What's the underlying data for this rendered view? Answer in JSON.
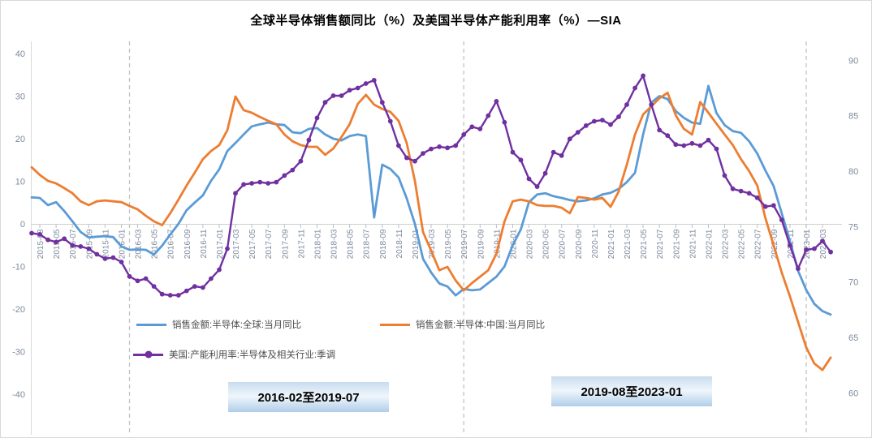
{
  "title": "全球半导体销售额同比（%）及美国半导体产能利用率（%）—SIA",
  "annotations": [
    {
      "label": "2016-02至2019-07"
    },
    {
      "label": "2019-08至2023-01"
    }
  ],
  "chart_data": {
    "type": "line",
    "title": "全球半导体销售额同比（%）及美国半导体产能利用率（%）—SIA",
    "grid": false,
    "legend_position": "below-plot",
    "left_axis": {
      "min": -40,
      "max": 40,
      "step": 10
    },
    "right_axis": {
      "min": 60,
      "max": 90,
      "step": 5
    },
    "tick_label_color": "#7e8a9e",
    "dashed_vlines": [
      "2016-02",
      "2019-07",
      "2023-01"
    ],
    "x": [
      "2015-02",
      "2015-03",
      "2015-04",
      "2015-05",
      "2015-06",
      "2015-07",
      "2015-08",
      "2015-09",
      "2015-10",
      "2015-11",
      "2015-12",
      "2016-01",
      "2016-02",
      "2016-03",
      "2016-04",
      "2016-05",
      "2016-06",
      "2016-07",
      "2016-08",
      "2016-09",
      "2016-10",
      "2016-11",
      "2016-12",
      "2017-01",
      "2017-02",
      "2017-03",
      "2017-04",
      "2017-05",
      "2017-06",
      "2017-07",
      "2017-08",
      "2017-09",
      "2017-10",
      "2017-11",
      "2017-12",
      "2018-01",
      "2018-02",
      "2018-03",
      "2018-04",
      "2018-05",
      "2018-06",
      "2018-07",
      "2018-08",
      "2018-09",
      "2018-10",
      "2018-11",
      "2018-12",
      "2019-01",
      "2019-02",
      "2019-03",
      "2019-04",
      "2019-05",
      "2019-06",
      "2019-07",
      "2019-08",
      "2019-09",
      "2019-10",
      "2019-11",
      "2019-12",
      "2020-01",
      "2020-02",
      "2020-03",
      "2020-04",
      "2020-05",
      "2020-06",
      "2020-07",
      "2020-08",
      "2020-09",
      "2020-10",
      "2020-11",
      "2020-12",
      "2021-01",
      "2021-02",
      "2021-03",
      "2021-04",
      "2021-05",
      "2021-06",
      "2021-07",
      "2021-08",
      "2021-09",
      "2021-10",
      "2021-11",
      "2021-12",
      "2022-01",
      "2022-02",
      "2022-03",
      "2022-04",
      "2022-05",
      "2022-06",
      "2022-07",
      "2022-08",
      "2022-09",
      "2022-10",
      "2022-11",
      "2022-12",
      "2023-01",
      "2023-02",
      "2023-03",
      "2023-04"
    ],
    "series": [
      {
        "key": "global",
        "name": "销售金额:半导体:全球:当月同比",
        "axis": "left",
        "color": "#5B9BD5",
        "marker": false,
        "values": [
          6.2,
          6.1,
          4.4,
          5.1,
          3.0,
          0.6,
          -1.9,
          -3.2,
          -3.0,
          -2.9,
          -3.1,
          -5.3,
          -6.1,
          -6.0,
          -6.1,
          -7.2,
          -5.1,
          -2.5,
          0.0,
          3.2,
          5.0,
          6.7,
          10.1,
          12.8,
          17.1,
          19.0,
          21.0,
          22.9,
          23.4,
          23.8,
          23.4,
          23.2,
          21.5,
          21.3,
          22.3,
          22.5,
          21.0,
          20.0,
          19.6,
          20.6,
          21.0,
          20.6,
          1.5,
          13.9,
          12.9,
          10.9,
          6.0,
          0.0,
          -8.2,
          -11.4,
          -14.0,
          -14.7,
          -16.8,
          -15.3,
          -15.6,
          -15.4,
          -13.9,
          -12.4,
          -10.0,
          -5.0,
          -1.3,
          5.1,
          6.9,
          7.2,
          6.5,
          6.1,
          5.6,
          5.3,
          5.5,
          6.0,
          6.9,
          7.3,
          8.2,
          9.8,
          12.0,
          21.0,
          28.5,
          30.0,
          29.3,
          26.5,
          24.9,
          23.8,
          23.5,
          32.4,
          26.0,
          23.2,
          21.8,
          21.4,
          19.4,
          16.5,
          12.5,
          8.9,
          2.5,
          -4.0,
          -11.0,
          -15.5,
          -18.8,
          -20.5,
          -21.3
        ]
      },
      {
        "key": "china",
        "name": "销售金额:半导体:中国:当月同比",
        "axis": "left",
        "color": "#ED7D31",
        "marker": false,
        "values": [
          13.3,
          11.5,
          10.1,
          9.5,
          8.4,
          7.2,
          5.3,
          4.4,
          5.3,
          5.5,
          5.3,
          5.1,
          4.2,
          3.4,
          1.9,
          0.6,
          -0.3,
          2.5,
          5.7,
          9.0,
          12.0,
          15.2,
          17.1,
          18.5,
          22.0,
          29.9,
          26.7,
          26.1,
          25.1,
          24.2,
          23.4,
          21.0,
          19.4,
          18.5,
          18.1,
          18.1,
          16.2,
          17.7,
          20.4,
          23.4,
          28.2,
          30.3,
          28.0,
          27.0,
          26.3,
          24.2,
          19.0,
          10.1,
          -1.9,
          -6.3,
          -10.9,
          -10.1,
          -13.3,
          -15.6,
          -13.9,
          -12.4,
          -10.9,
          -7.0,
          0.6,
          5.3,
          5.7,
          5.3,
          4.4,
          4.2,
          4.2,
          3.8,
          2.5,
          6.3,
          6.1,
          5.7,
          6.1,
          4.0,
          7.6,
          13.9,
          21.0,
          25.7,
          27.6,
          29.5,
          30.8,
          25.5,
          22.3,
          21.0,
          28.6,
          26.1,
          23.5,
          21.0,
          18.5,
          15.2,
          12.4,
          9.0,
          1.3,
          -5.0,
          -11.4,
          -17.0,
          -23.0,
          -29.0,
          -32.8,
          -34.3,
          -31.4
        ]
      },
      {
        "key": "us-utilization",
        "name": "美国:产能利用率:半导体及相关行业:季调",
        "axis": "right",
        "color": "#7030A0",
        "marker": true,
        "values": [
          74.4,
          74.3,
          73.8,
          73.6,
          73.9,
          73.3,
          73.2,
          73.0,
          72.5,
          72.1,
          72.2,
          71.8,
          70.5,
          70.1,
          70.3,
          69.6,
          68.9,
          68.8,
          68.8,
          69.2,
          69.6,
          69.5,
          70.3,
          71.1,
          73.0,
          78.0,
          78.8,
          78.9,
          79.0,
          78.9,
          79.0,
          79.6,
          80.1,
          80.9,
          82.8,
          84.8,
          86.2,
          86.8,
          86.8,
          87.3,
          87.5,
          87.9,
          88.2,
          86.2,
          84.5,
          82.3,
          81.2,
          80.9,
          81.6,
          82.0,
          82.2,
          82.1,
          82.3,
          83.3,
          84.0,
          83.8,
          85.0,
          86.3,
          84.4,
          81.7,
          81.0,
          79.3,
          78.6,
          79.8,
          81.7,
          81.4,
          82.9,
          83.5,
          84.1,
          84.5,
          84.6,
          84.2,
          84.9,
          86.0,
          87.5,
          88.6,
          86.0,
          83.7,
          83.2,
          82.4,
          82.3,
          82.5,
          82.3,
          82.8,
          82.0,
          79.6,
          78.4,
          78.2,
          78.0,
          77.6,
          76.8,
          76.9,
          75.6,
          73.3,
          71.2,
          72.9,
          73.0,
          73.7,
          72.7
        ]
      }
    ]
  }
}
